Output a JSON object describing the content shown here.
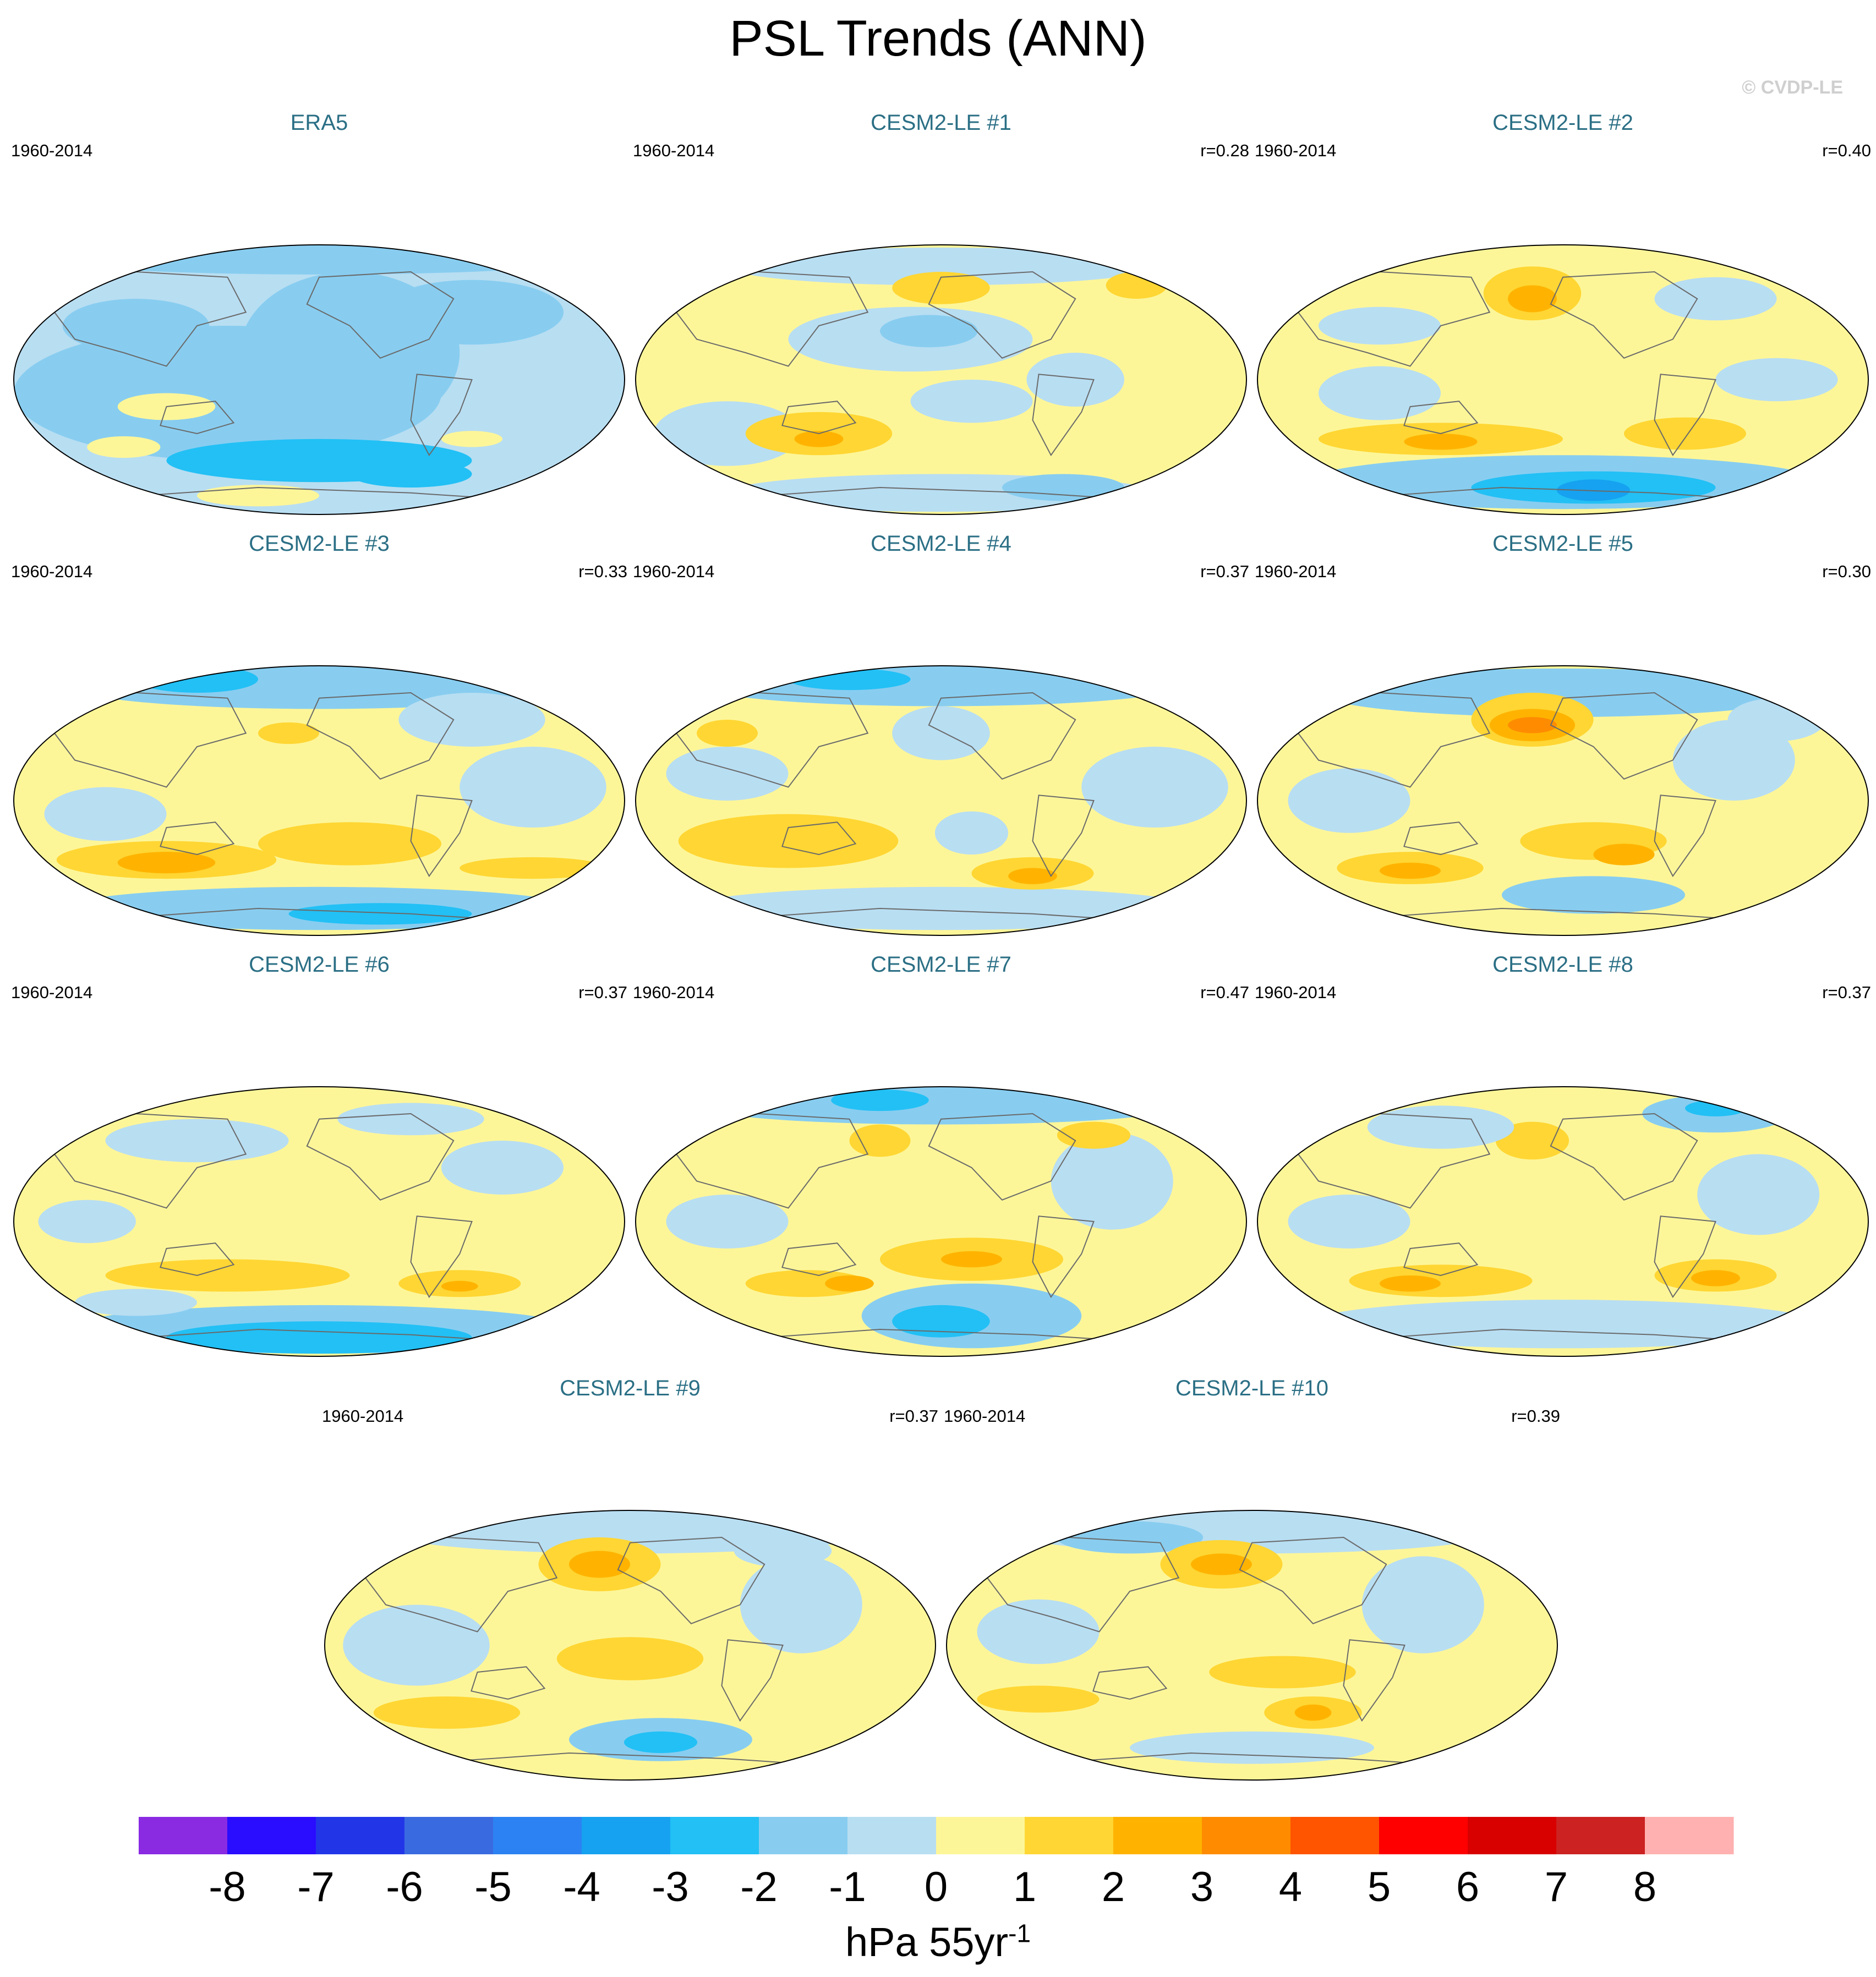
{
  "title": "PSL Trends (ANN)",
  "copyright": "© CVDP-LE",
  "units": "hPa 55yr",
  "units_exponent": "-1",
  "chart_data": {
    "type": "heatmap",
    "description_type": "global map panels (Hammer/Robinson-like projection) of sea level pressure trends",
    "period": "1960-2014",
    "panels": [
      {
        "name": "ERA5",
        "period": "1960-2014",
        "r": "",
        "pattern": "era5"
      },
      {
        "name": "CESM2-LE #1",
        "period": "1960-2014",
        "r": "r=0.28",
        "pattern": "m1"
      },
      {
        "name": "CESM2-LE #2",
        "period": "1960-2014",
        "r": "r=0.40",
        "pattern": "m2"
      },
      {
        "name": "CESM2-LE #3",
        "period": "1960-2014",
        "r": "r=0.33",
        "pattern": "m3"
      },
      {
        "name": "CESM2-LE #4",
        "period": "1960-2014",
        "r": "r=0.37",
        "pattern": "m4"
      },
      {
        "name": "CESM2-LE #5",
        "period": "1960-2014",
        "r": "r=0.30",
        "pattern": "m5"
      },
      {
        "name": "CESM2-LE #6",
        "period": "1960-2014",
        "r": "r=0.37",
        "pattern": "m6"
      },
      {
        "name": "CESM2-LE #7",
        "period": "1960-2014",
        "r": "r=0.47",
        "pattern": "m7"
      },
      {
        "name": "CESM2-LE #8",
        "period": "1960-2014",
        "r": "r=0.37",
        "pattern": "m8"
      },
      {
        "name": "CESM2-LE #9",
        "period": "1960-2014",
        "r": "r=0.37",
        "pattern": "m9"
      },
      {
        "name": "CESM2-LE #10",
        "period": "1960-2014",
        "r": "r=0.39",
        "pattern": "m10"
      }
    ],
    "colorbar": {
      "ticks": [
        "-8",
        "-7",
        "-6",
        "-5",
        "-4",
        "-3",
        "-2",
        "-1",
        "0",
        "1",
        "2",
        "3",
        "4",
        "5",
        "6",
        "7",
        "8"
      ],
      "colors": [
        "#8a2be2",
        "#2a0cff",
        "#2236e8",
        "#3a6ae0",
        "#2c82f2",
        "#16a2f0",
        "#22c0f5",
        "#88cdf0",
        "#b8def2",
        "#fdf699",
        "#ffd633",
        "#ffb300",
        "#ff8c00",
        "#ff5500",
        "#ff0000",
        "#d90000",
        "#cc2222",
        "#ffb0b0"
      ]
    },
    "legend": "bottom"
  }
}
